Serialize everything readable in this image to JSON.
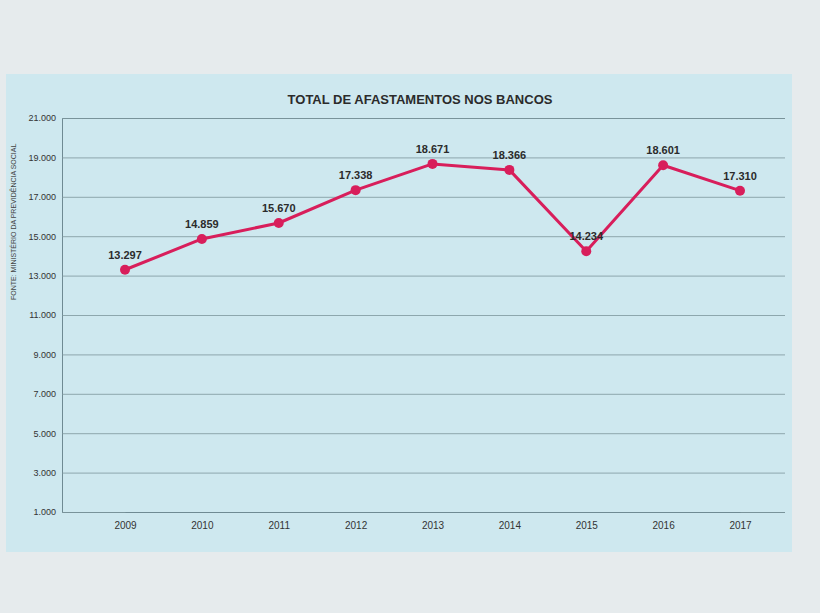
{
  "chart_data": {
    "type": "line",
    "title": "TOTAL DE AFASTAMENTOS NOS BANCOS",
    "source": "FONTE: MINISTÉRIO DA PREVIDÊNCIA SOCIAL",
    "categories": [
      "2009",
      "2010",
      "2011",
      "2012",
      "2013",
      "2014",
      "2015",
      "2016",
      "2017"
    ],
    "values": [
      13297,
      14859,
      15670,
      17338,
      18671,
      18366,
      14234,
      18601,
      17310
    ],
    "value_labels": [
      "13.297",
      "14.859",
      "15.670",
      "17.338",
      "18.671",
      "18.366",
      "14.234",
      "18.601",
      "17.310"
    ],
    "color": "#d81e5b",
    "marker": "circle",
    "ylim": [
      1000,
      21000
    ],
    "yticks": [
      {
        "value": 1000,
        "label": "1.000"
      },
      {
        "value": 3000,
        "label": "3.000"
      },
      {
        "value": 5000,
        "label": "5.000"
      },
      {
        "value": 7000,
        "label": "7.000"
      },
      {
        "value": 9000,
        "label": "9.000"
      },
      {
        "value": 11000,
        "label": "11.000"
      },
      {
        "value": 13000,
        "label": "13.000"
      },
      {
        "value": 15000,
        "label": "15.000"
      },
      {
        "value": 17000,
        "label": "17.000"
      },
      {
        "value": 19000,
        "label": "19.000"
      },
      {
        "value": 21000,
        "label": "21.000"
      }
    ],
    "grid": true,
    "data_labels": true
  }
}
